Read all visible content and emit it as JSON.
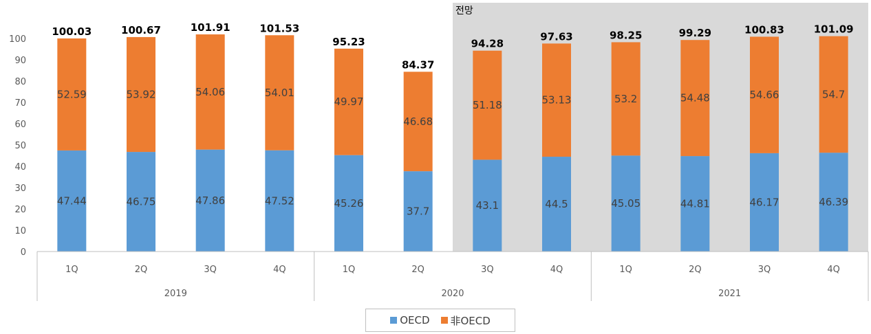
{
  "chart_data": {
    "type": "bar",
    "stacked": true,
    "ylim": [
      0,
      100
    ],
    "yticks": [
      0,
      10,
      20,
      30,
      40,
      50,
      60,
      70,
      80,
      90,
      100
    ],
    "grid": false,
    "legend_position": "bottom",
    "quarters": [
      "1Q",
      "2Q",
      "3Q",
      "4Q",
      "1Q",
      "2Q",
      "3Q",
      "4Q",
      "1Q",
      "2Q",
      "3Q",
      "4Q"
    ],
    "years": [
      "2019",
      "2020",
      "2021"
    ],
    "series": [
      {
        "name": "OECD",
        "color": "#5b9bd5",
        "values": [
          47.44,
          46.75,
          47.86,
          47.52,
          45.26,
          37.7,
          43.1,
          44.5,
          45.05,
          44.81,
          46.17,
          46.39
        ]
      },
      {
        "name": "非OECD",
        "color": "#ed7d31",
        "values": [
          52.59,
          53.92,
          54.06,
          54.01,
          49.97,
          46.68,
          51.18,
          53.13,
          53.2,
          54.48,
          54.66,
          54.7
        ]
      }
    ],
    "totals": [
      "100.03",
      "100.67",
      "101.91",
      "101.53",
      "95.23",
      "84.37",
      "94.28",
      "97.63",
      "98.25",
      "99.29",
      "100.83",
      "101.09"
    ],
    "forecast_label": "전망",
    "forecast_start_index": 6,
    "forecast_color": "#d9d9d9"
  }
}
